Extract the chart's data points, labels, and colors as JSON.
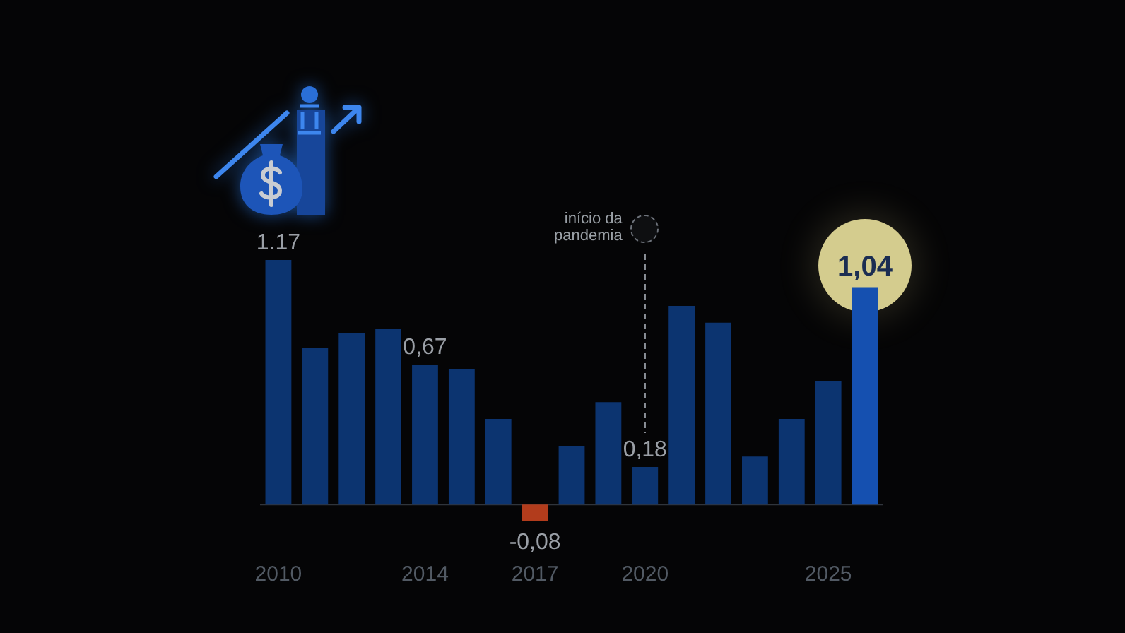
{
  "chart_data": {
    "type": "bar",
    "categories": [
      "2010",
      null,
      null,
      null,
      "2014",
      null,
      null,
      "2017",
      null,
      null,
      "2020",
      null,
      null,
      null,
      null,
      "2025",
      null
    ],
    "values": [
      1.17,
      0.75,
      0.82,
      0.84,
      0.67,
      0.65,
      0.41,
      -0.08,
      0.28,
      0.49,
      0.18,
      0.95,
      0.87,
      0.23,
      0.41,
      0.59,
      1.04
    ],
    "colors": [
      "#0c3470",
      "#0c3470",
      "#0c3470",
      "#0c3470",
      "#0c3470",
      "#0c3470",
      "#0c3470",
      "#b23c1c",
      "#0c3470",
      "#0c3470",
      "#0c3470",
      "#0c3470",
      "#0c3470",
      "#0c3470",
      "#0c3470",
      "#0c3470",
      "#1550b0"
    ],
    "value_labels": [
      "1.17",
      null,
      null,
      null,
      "0,67",
      null,
      null,
      "-0,08",
      null,
      null,
      "0,18",
      null,
      null,
      null,
      null,
      null,
      "1,04"
    ],
    "ref_lines": [
      {
        "axis": "x",
        "value": "2020",
        "label": "início da pandemia",
        "line_style": "dashed",
        "color": "#8a8f96"
      }
    ],
    "grid": false,
    "legend": false
  }
}
